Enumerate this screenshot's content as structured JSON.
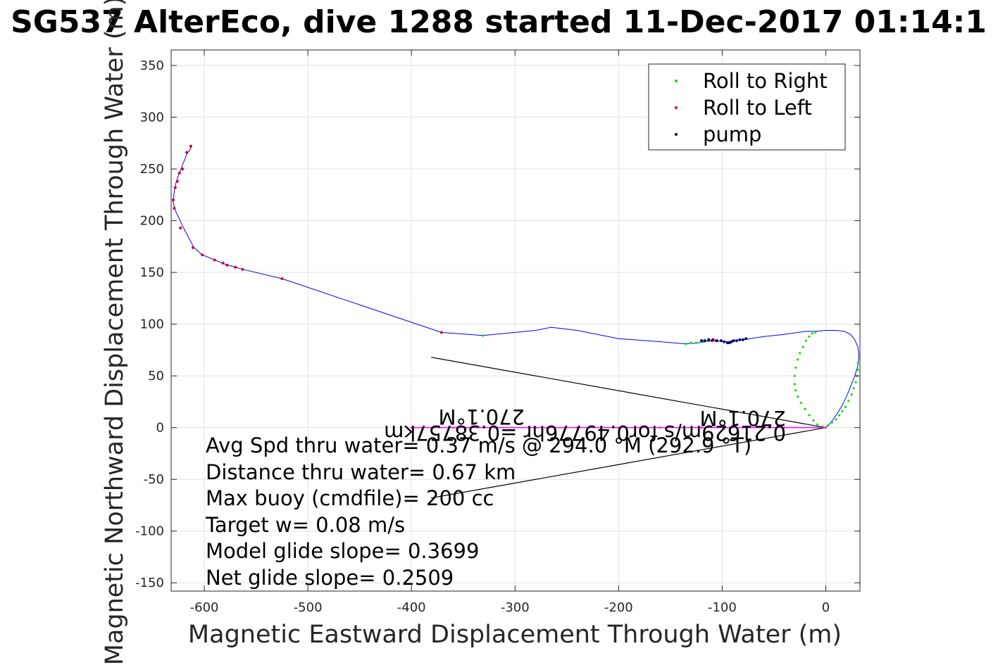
{
  "chart_data": {
    "type": "scatter",
    "title": "SG537 AlterEco, dive 1288 started 11-Dec-2017 01:14:1",
    "xlabel": "Magnetic Eastward Displacement Through Water (m)",
    "ylabel": "Magnetic Northward Displacement Through Water (m)",
    "xlim": [
      -632,
      33
    ],
    "ylim": [
      -158,
      365
    ],
    "xticks": [
      -600,
      -500,
      -400,
      -300,
      -200,
      -100,
      0
    ],
    "yticks": [
      350,
      300,
      250,
      200,
      150,
      100,
      50,
      0,
      -50,
      -100,
      -150
    ],
    "grid": true,
    "legend_position": "top-right",
    "colors": {
      "track": "#0000ff",
      "roll_right": "#00dd00",
      "roll_left": "#ff0000",
      "pump": "#000066",
      "vector": "#000000",
      "surface": "#ff00ff"
    },
    "series": [
      {
        "name": "Roll to Right",
        "color": "#00dd00"
      },
      {
        "name": "Roll to Left",
        "color": "#ff0000"
      },
      {
        "name": "pump",
        "color": "#000066"
      }
    ],
    "track": {
      "x": [
        0,
        5,
        10,
        15,
        20,
        24,
        28,
        31,
        32,
        31,
        28,
        24,
        18,
        10,
        0,
        -10,
        -20,
        -40,
        -60,
        -80,
        -95,
        -110,
        -123,
        -135,
        -160,
        -200,
        -240,
        -265,
        -280,
        -300,
        -331,
        -371,
        -525,
        -563,
        -580,
        -602,
        -610,
        -620,
        -628,
        -630,
        -629,
        -627,
        -624,
        -621,
        -617,
        -613,
        -612
      ],
      "y": [
        0,
        5,
        12,
        20,
        30,
        40,
        50,
        60,
        70,
        78,
        85,
        90,
        93,
        94,
        94,
        93,
        93,
        90,
        88,
        85,
        83,
        84,
        82,
        81,
        83,
        86,
        94,
        97,
        94,
        92,
        89,
        92,
        144,
        153,
        158,
        167,
        174,
        193,
        210,
        218,
        228,
        238,
        246,
        254,
        264,
        270,
        273
      ]
    },
    "roll_right": {
      "x": [
        -10,
        -13,
        -16,
        -19,
        -22,
        -25,
        -27,
        -29,
        -30,
        -30,
        -29,
        -27,
        -24,
        -20,
        -16,
        -12,
        -8,
        -3,
        2,
        6,
        10,
        13,
        16,
        19,
        22,
        25,
        27,
        29,
        30,
        31,
        31,
        -115,
        -120,
        -125,
        -130,
        -135,
        -331
      ],
      "y": [
        92,
        91,
        88,
        84,
        78,
        72,
        66,
        58,
        50,
        42,
        36,
        30,
        24,
        18,
        12,
        7,
        3,
        1,
        2,
        5,
        8,
        12,
        16,
        20,
        26,
        32,
        38,
        44,
        50,
        56,
        62,
        84,
        83,
        82,
        82,
        81,
        89
      ]
    },
    "roll_left": {
      "x": [
        -371,
        -525,
        -563,
        -570,
        -578,
        -582,
        -590,
        -602,
        -611,
        -623,
        -629,
        -630,
        -628,
        -626,
        -624,
        -621,
        -617,
        -613,
        -110,
        -106
      ],
      "y": [
        92,
        144,
        153,
        155,
        157,
        159,
        162,
        167,
        174,
        193,
        212,
        220,
        232,
        238,
        246,
        250,
        266,
        272,
        84,
        84
      ]
    },
    "pump": {
      "x": [
        -120,
        -117,
        -113,
        -109,
        -105,
        -101,
        -98,
        -95,
        -93,
        -91,
        -89,
        -86,
        -83,
        -80,
        -77
      ],
      "y": [
        84,
        84,
        85,
        85,
        84,
        84,
        83,
        82,
        82,
        83,
        84,
        84,
        85,
        85,
        86
      ]
    },
    "surface_points": {
      "x": [
        -400,
        -360,
        -320,
        -280,
        -240,
        -200,
        -160,
        -120,
        -80,
        -40,
        0
      ],
      "y": [
        0,
        0,
        0,
        0,
        0,
        0,
        0,
        0,
        0,
        0,
        0
      ]
    },
    "vector_lines": [
      {
        "x": [
          -381,
          0
        ],
        "y": [
          68,
          0
        ]
      },
      {
        "x": [
          -381,
          0
        ],
        "y": [
          -68,
          0
        ]
      }
    ],
    "mirrored_labels": [
      "270.1°M",
      "0.21629m/s for0.49776hr =0.38757km",
      "270.1°M"
    ],
    "annotations": [
      "Avg Spd thru water=  0.37 m/s @ 294.0 °M (292.9 °T)",
      "Distance thru water=  0.67 km",
      "Max buoy (cmdfile)= 200 cc",
      "Target w= 0.08 m/s",
      "Model glide slope= 0.3699",
      "Net glide slope= 0.2509"
    ]
  }
}
